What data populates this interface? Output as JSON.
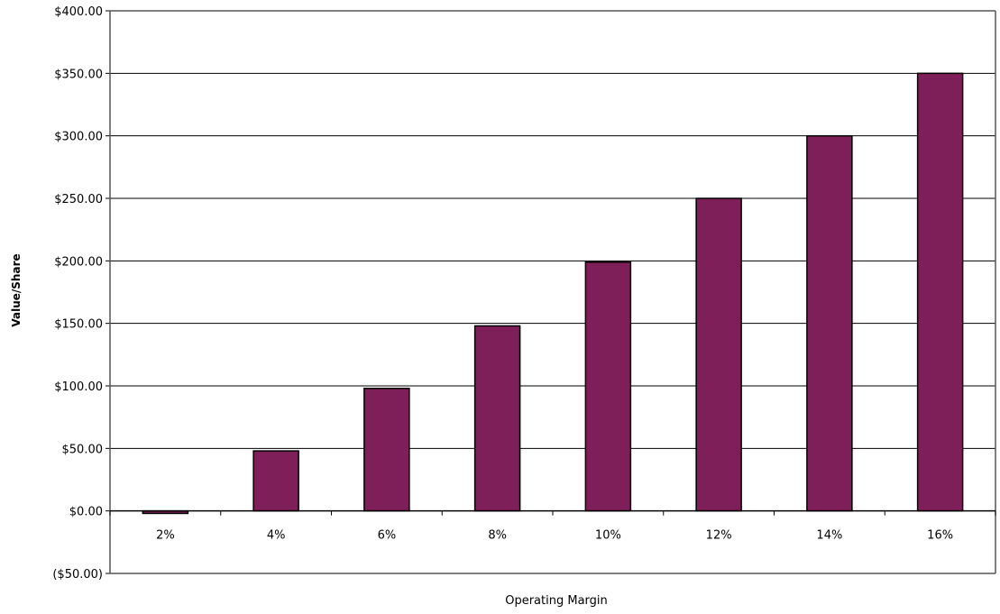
{
  "chart_data": {
    "type": "bar",
    "title": "",
    "xlabel": "Operating Margin",
    "ylabel": "Value/Share",
    "categories": [
      "2%",
      "4%",
      "6%",
      "8%",
      "10%",
      "12%",
      "14%",
      "16%"
    ],
    "values": [
      -2,
      48,
      98,
      148,
      199,
      250,
      300,
      350
    ],
    "ylim": [
      -50,
      400
    ],
    "yticks": [
      {
        "value": 400,
        "label": "$400.00"
      },
      {
        "value": 350,
        "label": "$350.00"
      },
      {
        "value": 300,
        "label": "$300.00"
      },
      {
        "value": 250,
        "label": "$250.00"
      },
      {
        "value": 200,
        "label": "$200.00"
      },
      {
        "value": 150,
        "label": "$150.00"
      },
      {
        "value": 100,
        "label": "$100.00"
      },
      {
        "value": 50,
        "label": "$50.00"
      },
      {
        "value": 0,
        "label": "$0.00"
      },
      {
        "value": -50,
        "label": "($50.00)"
      }
    ],
    "grid": true,
    "legend": "none",
    "colors": {
      "bar": "#7f1f5a",
      "negative_label": "#d00000",
      "gridline": "#000000"
    }
  }
}
